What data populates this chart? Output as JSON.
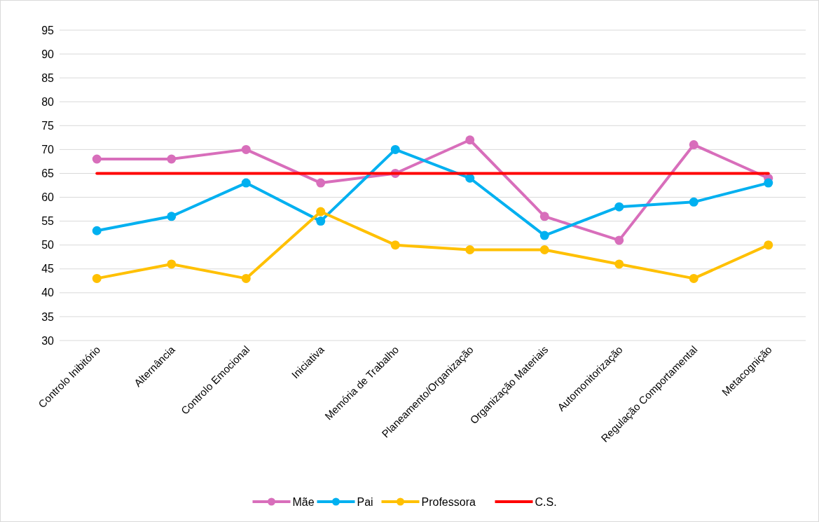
{
  "chart_data": {
    "type": "line",
    "categories": [
      "Controlo Inibitório",
      "Alternância",
      "Controlo Emocional",
      "Iniciativa",
      "Memória de Trabalho",
      "Planeamento/Organização",
      "Organização Materiais",
      "Automonitorização",
      "Regulação Comportamental",
      "Metacognição"
    ],
    "series": [
      {
        "name": "Mãe",
        "color": "#d86ebb",
        "values": [
          68,
          68,
          70,
          63,
          65,
          72,
          56,
          51,
          71,
          64
        ]
      },
      {
        "name": "Pai",
        "color": "#00b0f0",
        "values": [
          53,
          56,
          63,
          55,
          70,
          64,
          52,
          58,
          59,
          63
        ]
      },
      {
        "name": "Professora",
        "color": "#ffc000",
        "values": [
          43,
          46,
          43,
          57,
          50,
          49,
          49,
          46,
          43,
          50
        ]
      },
      {
        "name": "C.S.",
        "color": "#ff0000",
        "values": [
          65,
          65,
          65,
          65,
          65,
          65,
          65,
          65,
          65,
          65
        ],
        "marker": "none"
      }
    ],
    "ylim": [
      30,
      95
    ],
    "yticks": [
      30,
      35,
      40,
      45,
      50,
      55,
      60,
      65,
      70,
      75,
      80,
      85,
      90,
      95
    ],
    "grid": "y",
    "legend": "bottom",
    "marker": "circle",
    "line_style": "solid"
  }
}
